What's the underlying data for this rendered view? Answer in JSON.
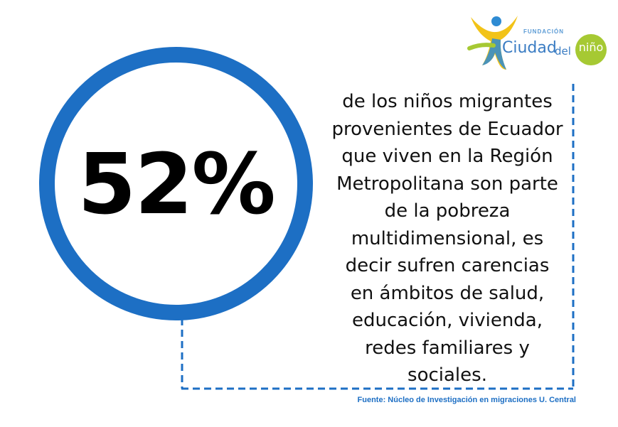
{
  "stat": {
    "value": "52%"
  },
  "description": {
    "lines": [
      "de los niños migrantes",
      "provenientes de Ecuador",
      "que viven en la Región",
      "Metropolitana son parte",
      "de la pobreza",
      "multidimensional, es",
      "decir sufren carencias",
      "en ámbitos de salud,",
      "educación, vivienda,",
      "redes familiares y",
      "sociales."
    ]
  },
  "source": {
    "text": "Fuente: Núcleo de Investigación  en migraciones  U. Central"
  },
  "logo": {
    "small_text": "FUNDACIÓN",
    "word1": "Ciudad",
    "word2": "del",
    "badge_word": "niño"
  },
  "colors": {
    "circle": "#1d6fc4",
    "dashes": "#1d6fc4",
    "source": "#1d6fc4",
    "logo_green": "#a6c933",
    "logo_yellow": "#f2c318"
  }
}
